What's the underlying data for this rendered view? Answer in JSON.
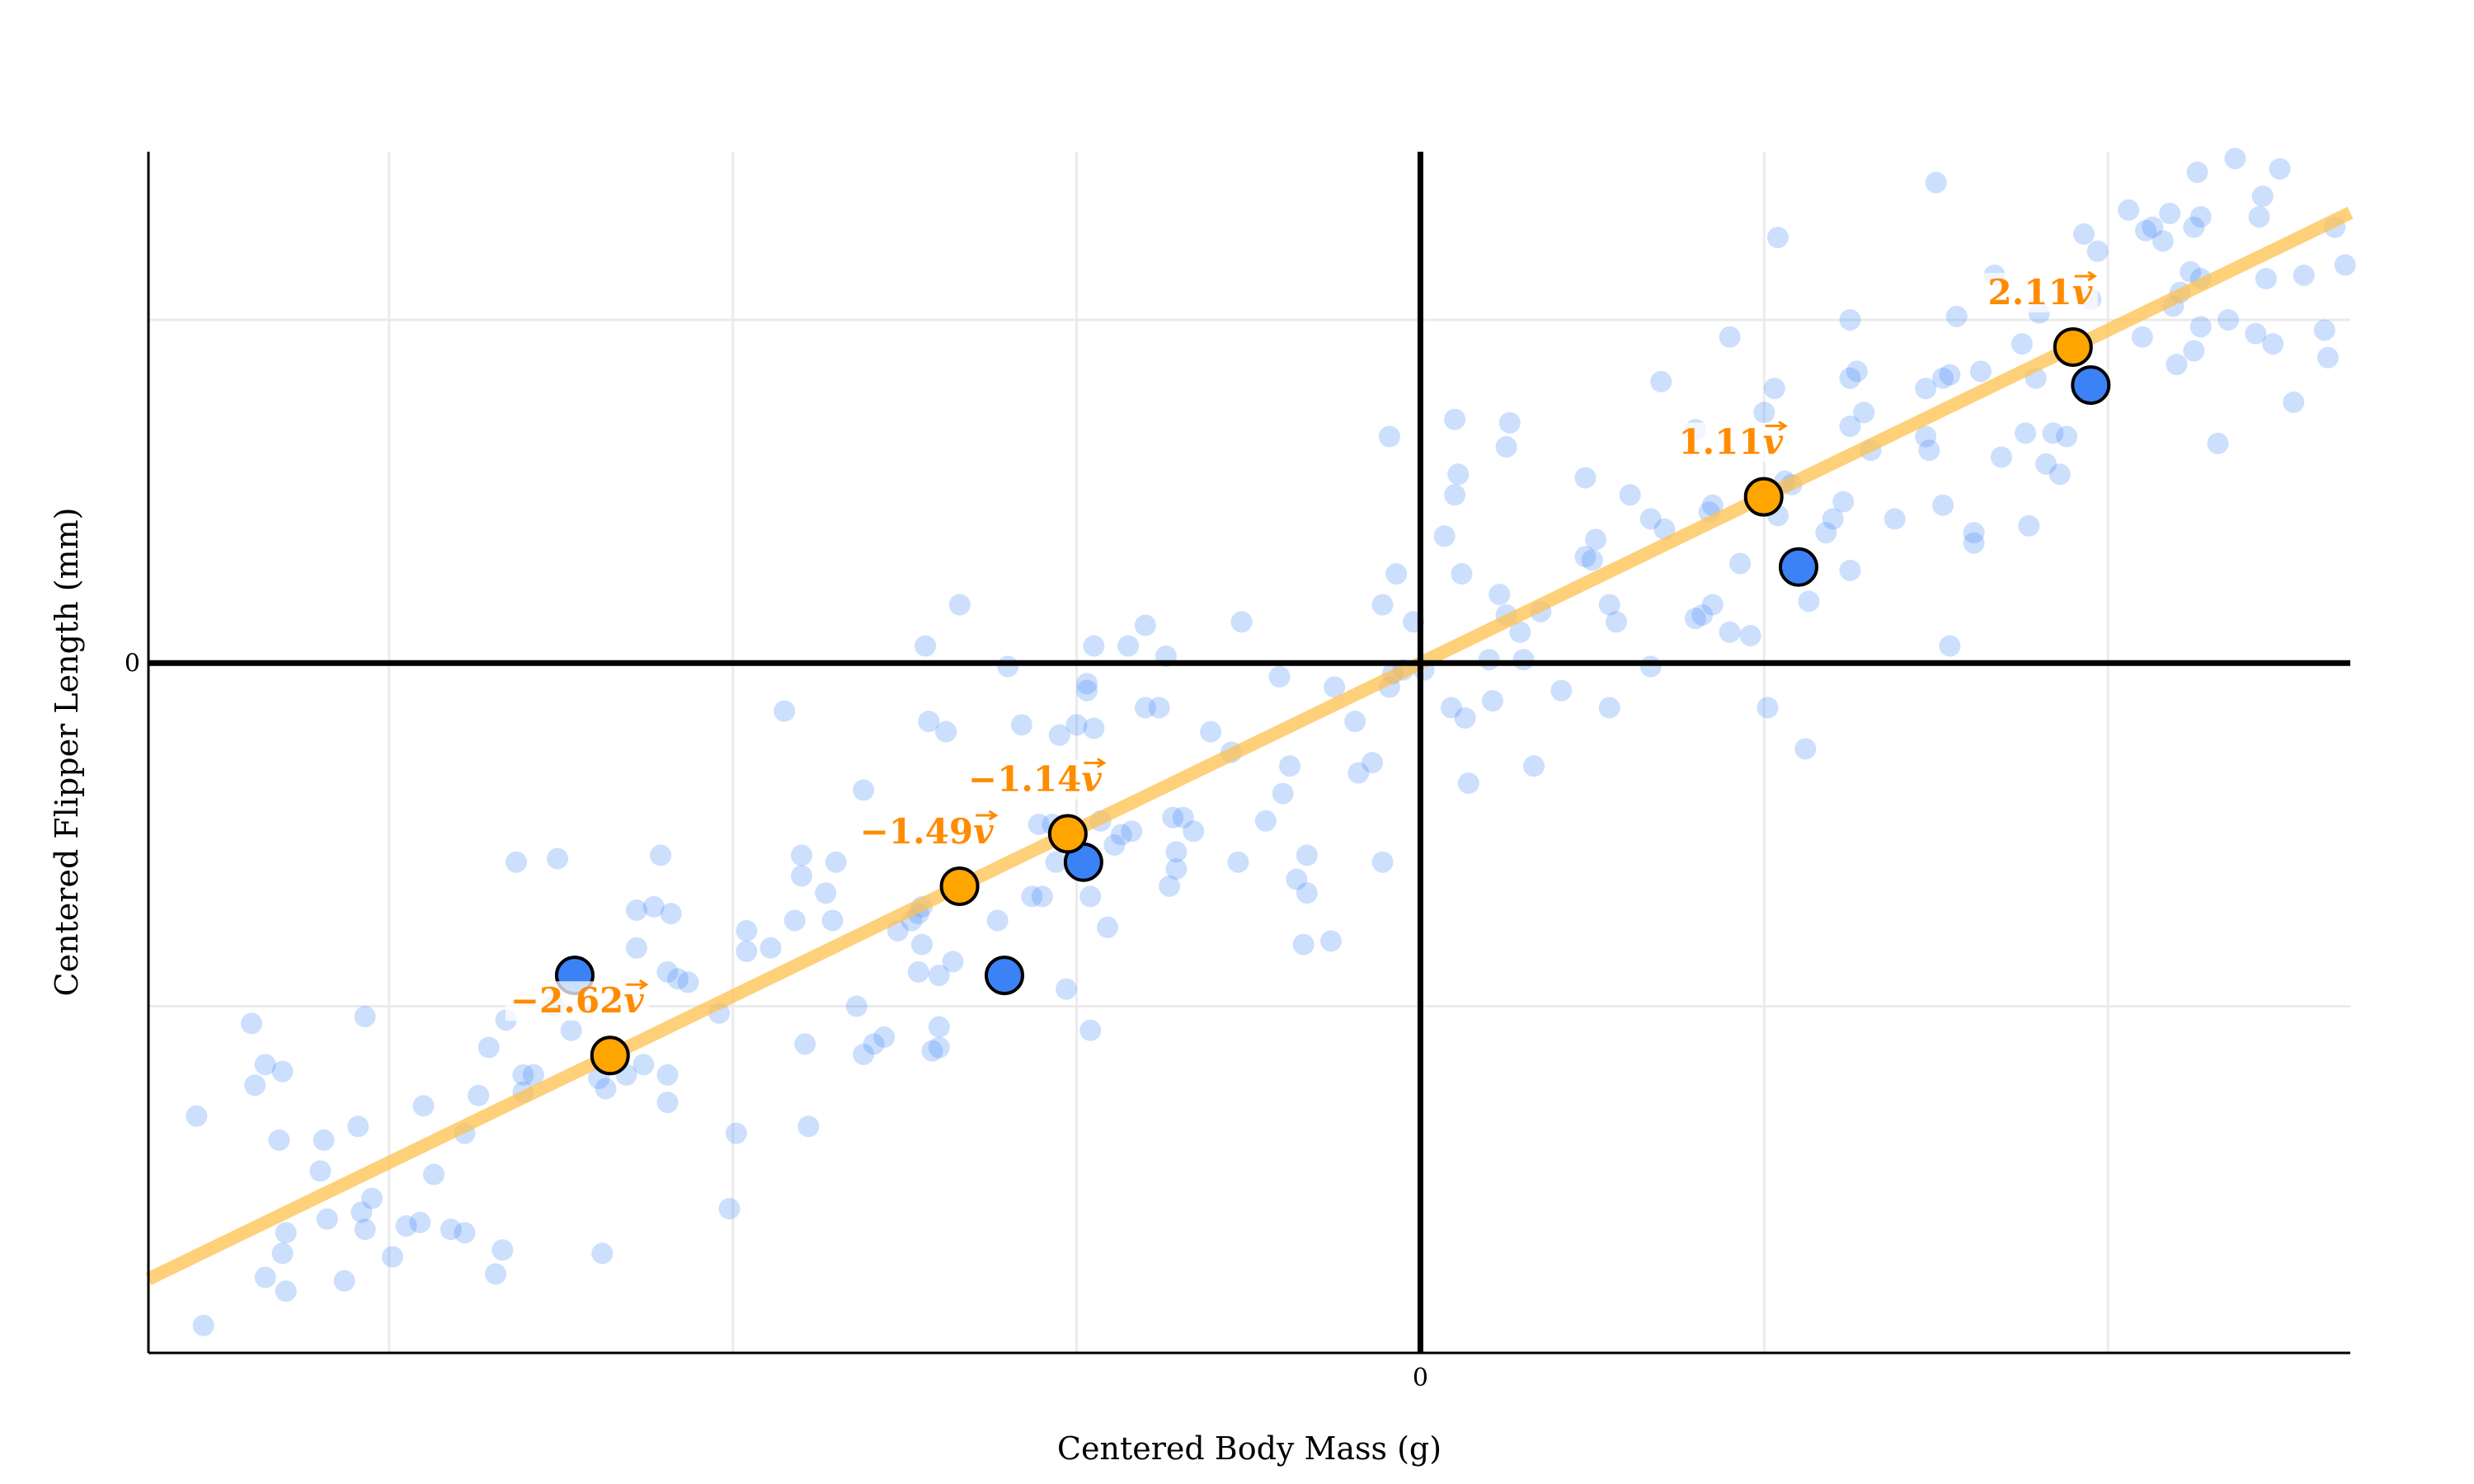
{
  "chart_data": {
    "type": "scatter",
    "title": "",
    "xlabel": "Centered Body Mass (g)",
    "ylabel": "Centered Flipper Length (mm)",
    "xlim": [
      -3.7,
      2.705
    ],
    "ylim": [
      -2.01,
      1.49
    ],
    "x_gridlines": [
      -3,
      -2,
      -1,
      0,
      1,
      2
    ],
    "y_gridlines": [
      -1,
      0,
      1
    ],
    "x_tick_labels": [
      {
        "value": 0,
        "label": "0"
      }
    ],
    "y_tick_labels": [
      {
        "value": 0,
        "label": "0"
      }
    ],
    "grid": true,
    "legend": "none",
    "colors": {
      "background_points": "#3b82f6",
      "highlighted_points": "#3b82f6",
      "projections": "#ffa500",
      "projection_labels": "#ff8c00",
      "principal_line": "#ffc04d",
      "zero_axes": "#000000"
    },
    "direction_vector": {
      "symbol": "v",
      "x": 0.8997,
      "y": 0.4364
    },
    "background_points": [
      [
        -3.56,
        -1.32
      ],
      [
        -3.54,
        -1.93
      ],
      [
        -3.4,
        -1.05
      ],
      [
        -3.36,
        -1.17
      ],
      [
        -3.39,
        -1.23
      ],
      [
        -3.31,
        -1.19
      ],
      [
        -3.32,
        -1.39
      ],
      [
        -3.36,
        -1.79
      ],
      [
        -3.31,
        -1.72
      ],
      [
        -3.3,
        -1.66
      ],
      [
        -3.3,
        -1.83
      ],
      [
        -3.19,
        -1.39
      ],
      [
        -3.2,
        -1.48
      ],
      [
        -3.18,
        -1.62
      ],
      [
        -3.13,
        -1.8
      ],
      [
        -3.09,
        -1.35
      ],
      [
        -3.07,
        -1.03
      ],
      [
        -3.08,
        -1.6
      ],
      [
        -3.05,
        -1.56
      ],
      [
        -3.07,
        -1.65
      ],
      [
        -2.99,
        -1.73
      ],
      [
        -2.95,
        -1.64
      ],
      [
        -2.9,
        -1.29
      ],
      [
        -2.87,
        -1.49
      ],
      [
        -2.91,
        -1.63
      ],
      [
        -2.82,
        -1.65
      ],
      [
        -2.78,
        -1.66
      ],
      [
        -2.78,
        -1.37
      ],
      [
        -2.74,
        -1.26
      ],
      [
        -2.71,
        -1.12
      ],
      [
        -2.67,
        -1.71
      ],
      [
        -2.69,
        -1.78
      ],
      [
        -2.66,
        -1.04
      ],
      [
        -2.63,
        -0.58
      ],
      [
        -2.51,
        -0.57
      ],
      [
        -2.61,
        -1.2
      ],
      [
        -2.61,
        -1.25
      ],
      [
        -2.58,
        -1.2
      ],
      [
        -2.52,
        -1.0
      ],
      [
        -2.47,
        -1.07
      ],
      [
        -2.39,
        -1.21
      ],
      [
        -2.38,
        -1.72
      ],
      [
        -2.37,
        -1.24
      ],
      [
        -2.31,
        -1.2
      ],
      [
        -2.26,
        -1.17
      ],
      [
        -2.28,
        -0.83
      ],
      [
        -2.28,
        -0.72
      ],
      [
        -2.23,
        -0.71
      ],
      [
        -2.21,
        -0.56
      ],
      [
        -2.18,
        -0.73
      ],
      [
        -2.19,
        -0.9
      ],
      [
        -2.16,
        -0.92
      ],
      [
        -2.13,
        -0.93
      ],
      [
        -2.19,
        -1.2
      ],
      [
        -2.19,
        -1.28
      ],
      [
        -2.04,
        -1.02
      ],
      [
        -1.99,
        -1.37
      ],
      [
        -2.01,
        -1.59
      ],
      [
        -1.96,
        -0.84
      ],
      [
        -1.96,
        -0.78
      ],
      [
        -1.89,
        -0.83
      ],
      [
        -1.85,
        -0.14
      ],
      [
        -1.82,
        -0.75
      ],
      [
        -1.79,
        -1.11
      ],
      [
        -1.8,
        -0.56
      ],
      [
        -1.8,
        -0.62
      ],
      [
        -1.78,
        -1.35
      ],
      [
        -1.73,
        -0.67
      ],
      [
        -1.71,
        -0.75
      ],
      [
        -1.7,
        -0.58
      ],
      [
        -1.64,
        -1.0
      ],
      [
        -1.62,
        -0.37
      ],
      [
        -1.62,
        -1.14
      ],
      [
        -1.59,
        -1.11
      ],
      [
        -1.56,
        -1.09
      ],
      [
        -1.52,
        -0.78
      ],
      [
        -1.48,
        -0.75
      ],
      [
        -1.46,
        -0.73
      ],
      [
        -1.45,
        -0.71
      ],
      [
        -1.46,
        -0.9
      ],
      [
        -1.45,
        -0.82
      ],
      [
        -1.43,
        -0.17
      ],
      [
        -1.42,
        -1.13
      ],
      [
        -1.4,
        -1.06
      ],
      [
        -1.4,
        -0.91
      ],
      [
        -1.4,
        -1.12
      ],
      [
        -1.38,
        -0.2
      ],
      [
        -1.36,
        -0.87
      ],
      [
        -1.34,
        0.17
      ],
      [
        -1.44,
        0.05
      ],
      [
        -1.2,
        -0.01
      ],
      [
        -1.23,
        -0.75
      ],
      [
        -1.16,
        -0.18
      ],
      [
        -1.13,
        -0.68
      ],
      [
        -1.11,
        -0.47
      ],
      [
        -1.1,
        -0.68
      ],
      [
        -1.07,
        -0.47
      ],
      [
        -1.06,
        -0.58
      ],
      [
        -1.05,
        -0.21
      ],
      [
        -1.03,
        -0.95
      ],
      [
        -1.0,
        -0.18
      ],
      [
        -0.97,
        -0.08
      ],
      [
        -0.97,
        -0.06
      ],
      [
        -0.96,
        -0.68
      ],
      [
        -0.95,
        -0.19
      ],
      [
        -0.96,
        -1.07
      ],
      [
        -0.95,
        0.05
      ],
      [
        -0.93,
        -0.46
      ],
      [
        -0.91,
        -0.77
      ],
      [
        -0.89,
        -0.53
      ],
      [
        -0.87,
        -0.5
      ],
      [
        -0.84,
        -0.49
      ],
      [
        -0.85,
        0.05
      ],
      [
        -0.8,
        0.11
      ],
      [
        -0.8,
        -0.13
      ],
      [
        -0.76,
        -0.13
      ],
      [
        -0.74,
        0.02
      ],
      [
        -0.73,
        -0.65
      ],
      [
        -0.71,
        -0.55
      ],
      [
        -0.71,
        -0.6
      ],
      [
        -0.72,
        -0.45
      ],
      [
        -0.69,
        -0.45
      ],
      [
        -0.66,
        -0.49
      ],
      [
        -0.61,
        -0.2
      ],
      [
        -0.55,
        -0.26
      ],
      [
        -0.52,
        0.12
      ],
      [
        -0.53,
        -0.58
      ],
      [
        -0.45,
        -0.46
      ],
      [
        -0.41,
        -0.04
      ],
      [
        -0.4,
        -0.38
      ],
      [
        -0.38,
        -0.3
      ],
      [
        -0.36,
        -0.63
      ],
      [
        -0.34,
        -0.82
      ],
      [
        -0.33,
        -0.67
      ],
      [
        -0.33,
        -0.56
      ],
      [
        -0.26,
        -0.81
      ],
      [
        -0.25,
        -0.07
      ],
      [
        -0.19,
        -0.17
      ],
      [
        -0.18,
        -0.32
      ],
      [
        -0.14,
        -0.29
      ],
      [
        -0.11,
        -0.58
      ],
      [
        -0.11,
        0.17
      ],
      [
        -0.09,
        0.66
      ],
      [
        -0.07,
        0.26
      ],
      [
        -0.08,
        -0.03
      ],
      [
        -0.09,
        -0.07
      ],
      [
        -0.05,
        -0.02
      ],
      [
        -0.02,
        0.12
      ],
      [
        0.01,
        -0.02
      ],
      [
        0.07,
        0.37
      ],
      [
        0.09,
        -0.13
      ],
      [
        0.1,
        0.49
      ],
      [
        0.1,
        0.71
      ],
      [
        0.11,
        0.55
      ],
      [
        0.12,
        0.26
      ],
      [
        0.13,
        -0.16
      ],
      [
        0.14,
        -0.35
      ],
      [
        0.2,
        0.01
      ],
      [
        0.21,
        -0.11
      ],
      [
        0.23,
        0.2
      ],
      [
        0.25,
        0.14
      ],
      [
        0.26,
        0.7
      ],
      [
        0.25,
        0.63
      ],
      [
        0.29,
        0.09
      ],
      [
        0.3,
        0.01
      ],
      [
        0.33,
        -0.3
      ],
      [
        0.35,
        0.15
      ],
      [
        0.41,
        -0.08
      ],
      [
        0.48,
        0.54
      ],
      [
        0.48,
        0.31
      ],
      [
        0.5,
        0.3
      ],
      [
        0.51,
        0.36
      ],
      [
        0.55,
        0.17
      ],
      [
        0.55,
        -0.13
      ],
      [
        0.57,
        0.12
      ],
      [
        0.61,
        0.49
      ],
      [
        0.67,
        -0.01
      ],
      [
        0.67,
        0.42
      ],
      [
        0.7,
        0.82
      ],
      [
        0.71,
        0.39
      ],
      [
        0.8,
        0.13
      ],
      [
        0.8,
        0.68
      ],
      [
        0.82,
        0.14
      ],
      [
        0.84,
        0.44
      ],
      [
        0.85,
        0.17
      ],
      [
        0.85,
        0.46
      ],
      [
        0.9,
        0.95
      ],
      [
        0.9,
        0.09
      ],
      [
        0.93,
        0.29
      ],
      [
        0.96,
        0.08
      ],
      [
        1.0,
        0.73
      ],
      [
        1.01,
        -0.13
      ],
      [
        1.03,
        0.8
      ],
      [
        1.04,
        0.43
      ],
      [
        1.04,
        1.24
      ],
      [
        1.06,
        0.53
      ],
      [
        1.08,
        0.52
      ],
      [
        1.12,
        -0.25
      ],
      [
        1.13,
        0.18
      ],
      [
        1.18,
        0.38
      ],
      [
        1.2,
        0.42
      ],
      [
        1.23,
        0.47
      ],
      [
        1.25,
        0.27
      ],
      [
        1.25,
        0.69
      ],
      [
        1.25,
        0.83
      ],
      [
        1.27,
        0.85
      ],
      [
        1.25,
        1.0
      ],
      [
        1.29,
        0.73
      ],
      [
        1.31,
        0.62
      ],
      [
        1.38,
        0.42
      ],
      [
        1.47,
        0.66
      ],
      [
        1.47,
        0.8
      ],
      [
        1.48,
        0.62
      ],
      [
        1.5,
        1.4
      ],
      [
        1.52,
        0.46
      ],
      [
        1.52,
        0.83
      ],
      [
        1.54,
        0.05
      ],
      [
        1.54,
        0.84
      ],
      [
        1.56,
        1.01
      ],
      [
        1.61,
        0.35
      ],
      [
        1.61,
        0.38
      ],
      [
        1.63,
        0.85
      ],
      [
        1.69,
        0.6
      ],
      [
        1.67,
        1.13
      ],
      [
        1.75,
        0.93
      ],
      [
        1.76,
        0.67
      ],
      [
        1.77,
        0.4
      ],
      [
        1.79,
        0.83
      ],
      [
        1.8,
        1.02
      ],
      [
        1.82,
        0.58
      ],
      [
        1.86,
        0.55
      ],
      [
        1.84,
        0.67
      ],
      [
        1.88,
        0.66
      ],
      [
        1.89,
        0.93
      ],
      [
        1.93,
        1.25
      ],
      [
        1.95,
        1.06
      ],
      [
        1.97,
        1.2
      ],
      [
        2.06,
        1.32
      ],
      [
        2.1,
        0.95
      ],
      [
        2.11,
        1.26
      ],
      [
        2.13,
        1.27
      ],
      [
        2.16,
        1.23
      ],
      [
        2.18,
        1.31
      ],
      [
        2.19,
        1.04
      ],
      [
        2.2,
        0.87
      ],
      [
        2.21,
        1.08
      ],
      [
        2.25,
        0.91
      ],
      [
        2.24,
        1.14
      ],
      [
        2.25,
        1.27
      ],
      [
        2.26,
        1.43
      ],
      [
        2.27,
        1.3
      ],
      [
        2.27,
        0.98
      ],
      [
        2.27,
        1.12
      ],
      [
        2.32,
        0.64
      ],
      [
        2.35,
        1.0
      ],
      [
        2.37,
        1.47
      ],
      [
        2.43,
        0.96
      ],
      [
        2.44,
        1.3
      ],
      [
        2.45,
        1.36
      ],
      [
        2.46,
        1.12
      ],
      [
        2.48,
        0.93
      ],
      [
        2.5,
        1.44
      ],
      [
        2.54,
        0.76
      ],
      [
        2.57,
        1.13
      ],
      [
        2.63,
        0.97
      ],
      [
        2.64,
        0.89
      ],
      [
        2.66,
        1.27
      ],
      [
        2.69,
        1.16
      ]
    ],
    "highlighted_points": [
      {
        "x": -2.46,
        "y": -0.91,
        "projection": -2.62,
        "label": "−2.62"
      },
      {
        "x": -1.21,
        "y": -0.91,
        "projection": -1.49,
        "label": "−1.49"
      },
      {
        "x": -0.98,
        "y": -0.58,
        "projection": -1.14,
        "label": "−1.14"
      },
      {
        "x": 1.1,
        "y": 0.28,
        "projection": 1.11,
        "label": "1.11"
      },
      {
        "x": 1.95,
        "y": 0.81,
        "projection": 2.11,
        "label": "2.11"
      }
    ]
  }
}
